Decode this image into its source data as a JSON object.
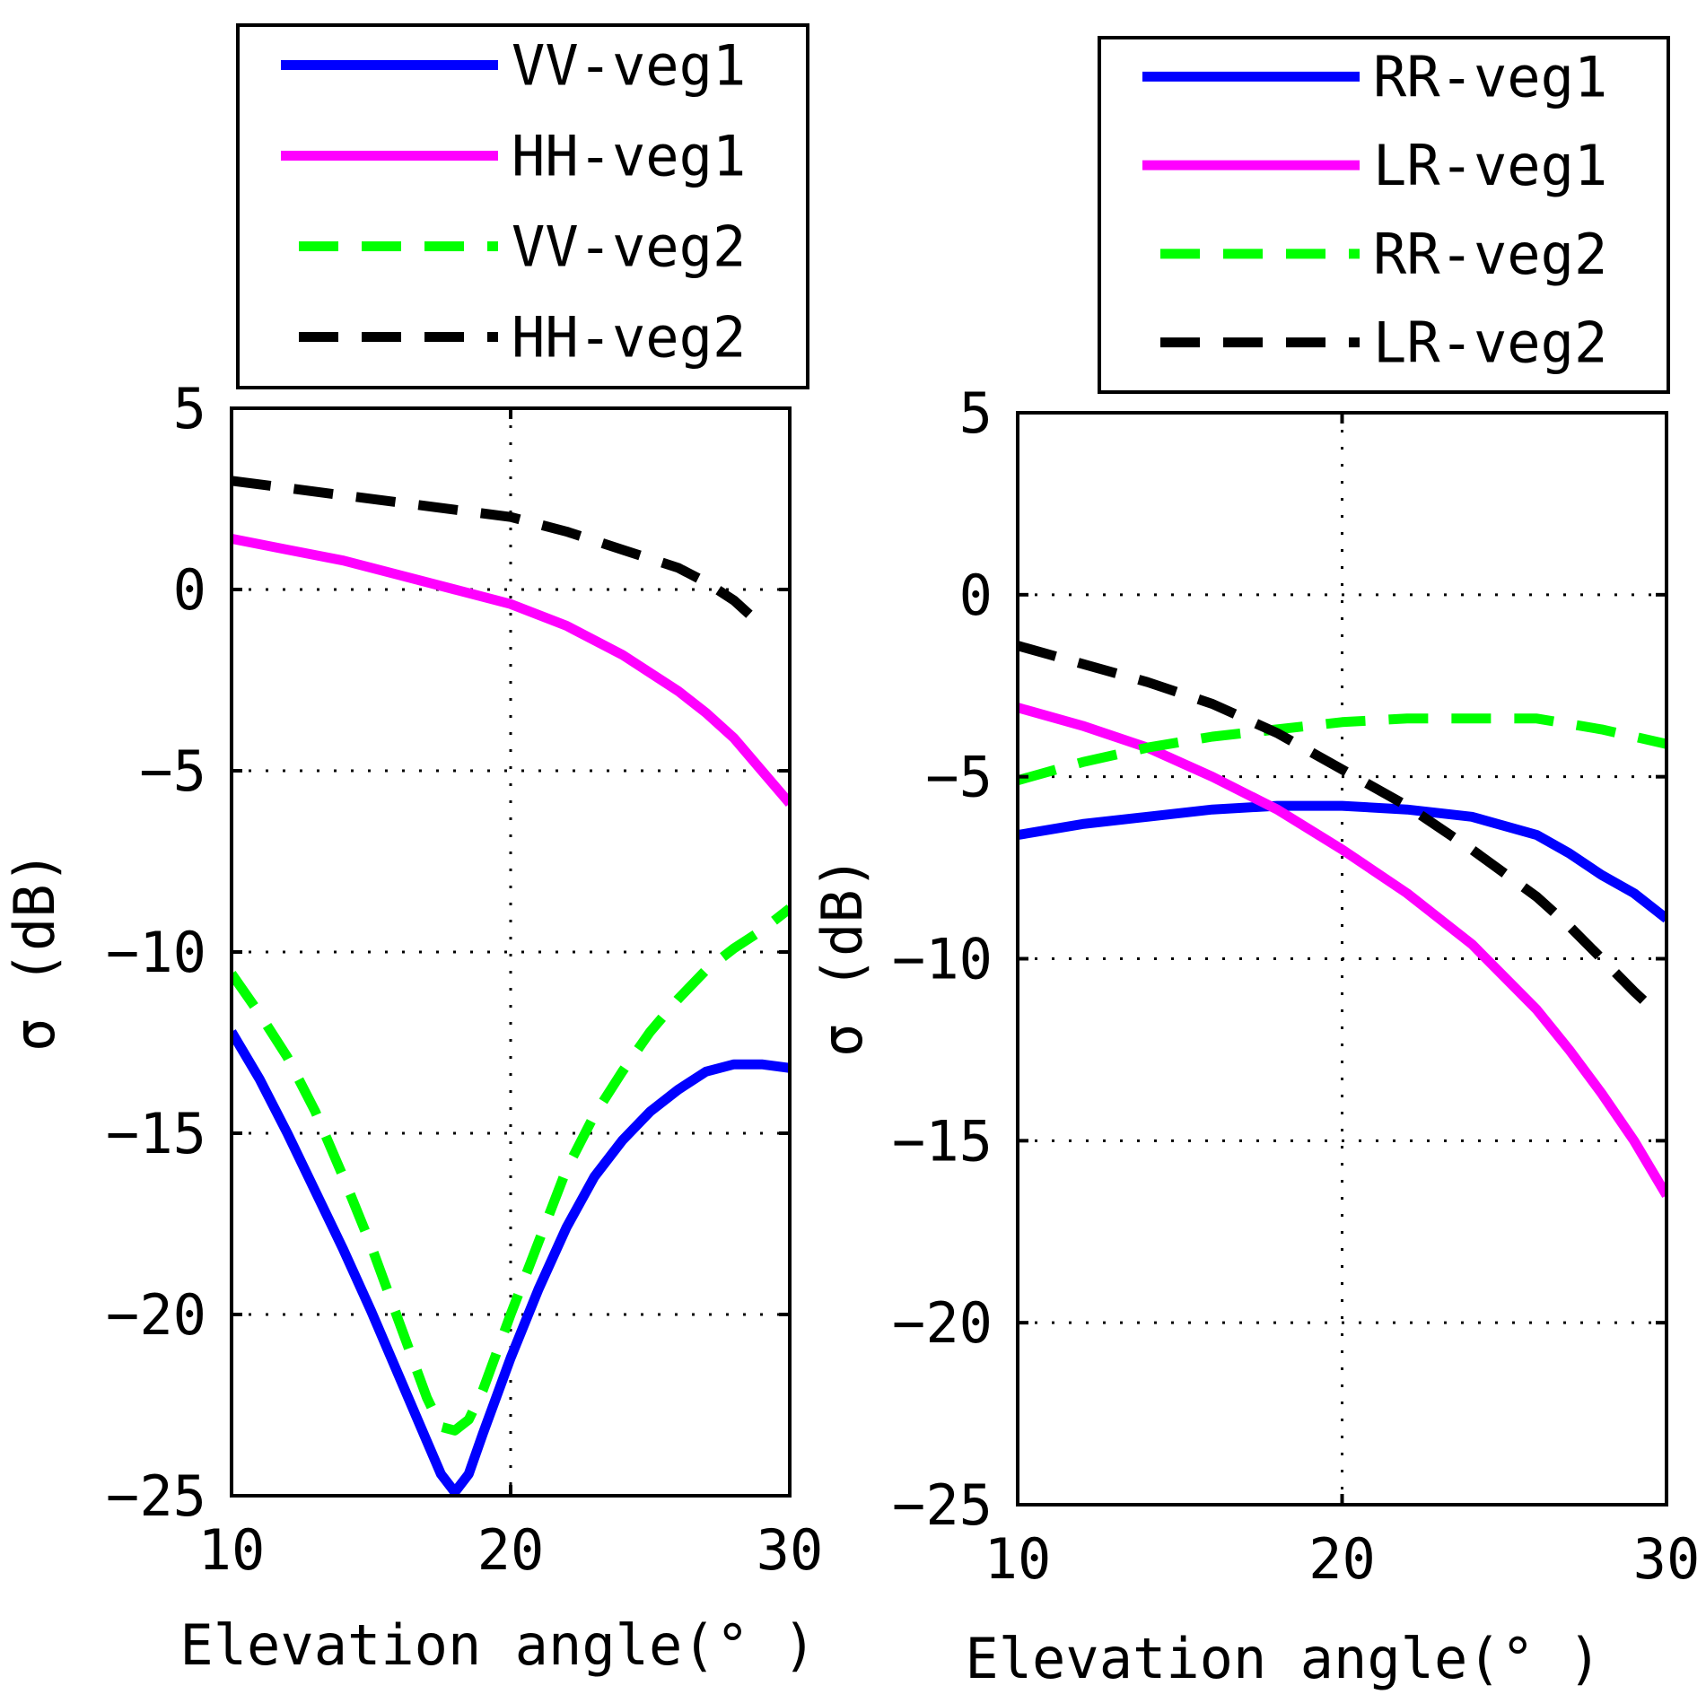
{
  "chart_data": [
    {
      "type": "line",
      "xlabel": "Elevation angle(° )",
      "ylabel": "σ (dB)",
      "xlim": [
        10,
        30
      ],
      "ylim": [
        -25,
        5
      ],
      "xticks": [
        10,
        20,
        30
      ],
      "yticks": [
        5,
        0,
        -5,
        -10,
        -15,
        -20,
        -25
      ],
      "grid": "dotted, at x=20 and y=0,-5,-10,-15,-20",
      "legend_position": "top",
      "series": [
        {
          "name": "VV-veg1",
          "color": "#0000ff",
          "dash": "solid",
          "x": [
            10,
            11,
            12,
            13,
            14,
            15,
            16,
            17,
            17.5,
            18,
            18.5,
            19,
            20,
            21,
            22,
            23,
            24,
            25,
            26,
            27,
            28,
            29,
            30
          ],
          "y": [
            -12.2,
            -13.5,
            -15.0,
            -16.6,
            -18.2,
            -19.9,
            -21.7,
            -23.5,
            -24.4,
            -24.9,
            -24.4,
            -23.3,
            -21.2,
            -19.3,
            -17.6,
            -16.2,
            -15.2,
            -14.4,
            -13.8,
            -13.3,
            -13.1,
            -13.1,
            -13.2
          ]
        },
        {
          "name": "HH-veg1",
          "color": "#ff00ff",
          "dash": "solid",
          "x": [
            10,
            12,
            14,
            16,
            18,
            20,
            22,
            24,
            26,
            27,
            28,
            29,
            30
          ],
          "y": [
            1.4,
            1.1,
            0.8,
            0.4,
            0.0,
            -0.4,
            -1.0,
            -1.8,
            -2.8,
            -3.4,
            -4.1,
            -5.0,
            -5.9
          ]
        },
        {
          "name": "VV-veg2",
          "color": "#00ff00",
          "dash": "dashed",
          "x": [
            10,
            11,
            12,
            13,
            14,
            15,
            16,
            17,
            17.5,
            18,
            18.5,
            19,
            20,
            21,
            22,
            23,
            24,
            25,
            26,
            27,
            28,
            29,
            30
          ],
          "y": [
            -10.6,
            -11.7,
            -12.9,
            -14.4,
            -16.2,
            -18.1,
            -20.2,
            -22.3,
            -23.1,
            -23.2,
            -22.9,
            -22.1,
            -20.0,
            -18.0,
            -16.0,
            -14.5,
            -13.3,
            -12.2,
            -11.3,
            -10.5,
            -9.9,
            -9.4,
            -8.8
          ]
        },
        {
          "name": "HH-veg2",
          "color": "#000000",
          "dash": "dashed",
          "x": [
            10,
            12,
            14,
            16,
            18,
            20,
            22,
            24,
            26,
            27,
            28,
            29
          ],
          "y": [
            3.0,
            2.8,
            2.6,
            2.4,
            2.2,
            2.0,
            1.6,
            1.1,
            0.6,
            0.2,
            -0.3,
            -1.0
          ]
        }
      ]
    },
    {
      "type": "line",
      "xlabel": "Elevation angle(° )",
      "ylabel": "σ (dB)",
      "xlim": [
        10,
        30
      ],
      "ylim": [
        -25,
        5
      ],
      "xticks": [
        10,
        20,
        30
      ],
      "yticks": [
        5,
        0,
        -5,
        -10,
        -15,
        -20,
        -25
      ],
      "grid": "dotted, at x=20 and y=0,-5,-10,-15,-20",
      "legend_position": "top",
      "series": [
        {
          "name": "RR-veg1",
          "color": "#0000ff",
          "dash": "solid",
          "x": [
            10,
            12,
            14,
            16,
            18,
            20,
            22,
            24,
            26,
            27,
            28,
            29,
            30
          ],
          "y": [
            -6.6,
            -6.3,
            -6.1,
            -5.9,
            -5.8,
            -5.8,
            -5.9,
            -6.1,
            -6.6,
            -7.1,
            -7.7,
            -8.2,
            -8.9
          ]
        },
        {
          "name": "LR-veg1",
          "color": "#ff00ff",
          "dash": "solid",
          "x": [
            10,
            12,
            14,
            16,
            18,
            20,
            22,
            24,
            26,
            27,
            28,
            29,
            30
          ],
          "y": [
            -3.1,
            -3.6,
            -4.2,
            -5.0,
            -5.9,
            -7.0,
            -8.2,
            -9.6,
            -11.4,
            -12.5,
            -13.7,
            -15.0,
            -16.5
          ]
        },
        {
          "name": "RR-veg2",
          "color": "#00ff00",
          "dash": "dashed",
          "x": [
            10,
            12,
            14,
            16,
            18,
            20,
            22,
            24,
            26,
            28,
            29,
            30
          ],
          "y": [
            -5.1,
            -4.6,
            -4.2,
            -3.9,
            -3.7,
            -3.5,
            -3.4,
            -3.4,
            -3.4,
            -3.7,
            -3.9,
            -4.1
          ]
        },
        {
          "name": "LR-veg2",
          "color": "#000000",
          "dash": "dashed",
          "x": [
            10,
            12,
            14,
            16,
            18,
            20,
            22,
            24,
            26,
            27,
            28,
            29,
            29.6
          ],
          "y": [
            -1.4,
            -1.9,
            -2.4,
            -3.0,
            -3.8,
            -4.8,
            -5.8,
            -7.0,
            -8.3,
            -9.1,
            -10.0,
            -10.9,
            -11.4
          ]
        }
      ]
    }
  ]
}
